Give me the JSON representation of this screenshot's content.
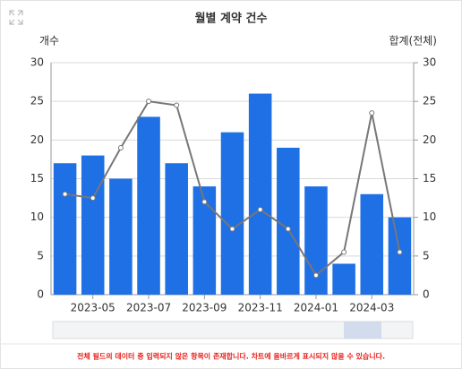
{
  "chart_data": {
    "type": "bar",
    "title": "월별 계약 건수",
    "y_label": "개수",
    "y2_label": "합계(전체)",
    "categories": [
      null,
      "2023-05",
      null,
      "2023-07",
      null,
      "2023-09",
      null,
      "2023-11",
      null,
      "2024-01",
      null,
      "2024-03",
      null
    ],
    "series": [
      {
        "type": "bar",
        "color": "#1f6fe5",
        "values": [
          17,
          18,
          15,
          23,
          17,
          14,
          21,
          26,
          19,
          14,
          4,
          13,
          10
        ]
      },
      {
        "type": "line",
        "axis": "y2",
        "color": "#777777",
        "values": [
          13,
          12.5,
          19,
          25,
          24.5,
          12,
          8.5,
          11,
          8.5,
          2.5,
          5.5,
          23.5,
          5.5
        ]
      }
    ],
    "ylim": [
      0,
      30
    ],
    "yticks": [
      0,
      5,
      10,
      15,
      20,
      25,
      30
    ],
    "y2lim": [
      0,
      30
    ],
    "y2ticks": [
      0,
      5,
      10,
      15,
      20,
      25,
      30
    ],
    "grid": true,
    "footnote": "전체 필드의 데이터 중 입력되지 않은 항목이 존재합니다. 차트에 올바르게 표시되지 않을 수 있습니다."
  }
}
